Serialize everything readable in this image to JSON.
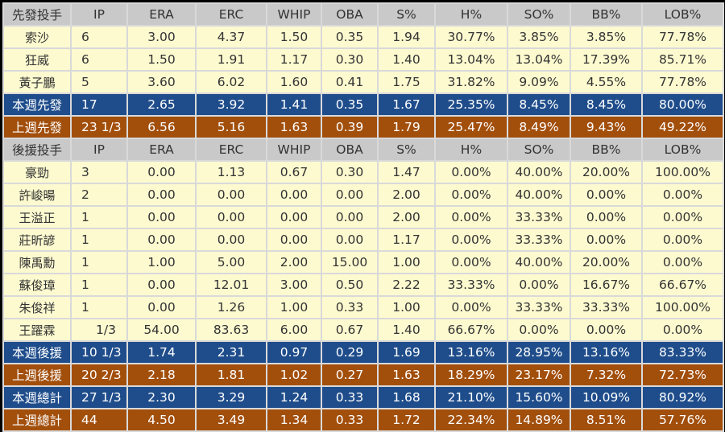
{
  "colors": {
    "header": "#c9c9c9",
    "player": "#fdfad0",
    "this_week": "#1f4d8b",
    "last_week": "#a24f0c"
  },
  "columns": [
    "IP",
    "ERA",
    "ERC",
    "WHIP",
    "OBA",
    "S%",
    "H%",
    "SO%",
    "BB%",
    "LOB%"
  ],
  "rows": [
    {
      "type": "hdr",
      "cells": [
        "先發投手",
        "IP",
        "ERA",
        "ERC",
        "WHIP",
        "OBA",
        "S%",
        "H%",
        "SO%",
        "BB%",
        "LOB%"
      ]
    },
    {
      "type": "player",
      "cells": [
        "索沙",
        "6",
        "3.00",
        "4.37",
        "1.50",
        "0.35",
        "1.94",
        "30.77%",
        "3.85%",
        "3.85%",
        "77.78%"
      ]
    },
    {
      "type": "player",
      "cells": [
        "狂威",
        "6",
        "1.50",
        "1.91",
        "1.17",
        "0.30",
        "1.40",
        "13.04%",
        "13.04%",
        "17.39%",
        "85.71%"
      ]
    },
    {
      "type": "player",
      "cells": [
        "黃子鵬",
        "5",
        "3.60",
        "6.02",
        "1.60",
        "0.41",
        "1.75",
        "31.82%",
        "9.09%",
        "4.55%",
        "77.78%"
      ]
    },
    {
      "type": "cur",
      "cells": [
        "本週先發",
        "17",
        "2.65",
        "3.92",
        "1.41",
        "0.35",
        "1.67",
        "25.35%",
        "8.45%",
        "8.45%",
        "80.00%"
      ]
    },
    {
      "type": "prev",
      "cells": [
        "上週先發",
        "23 1/3",
        "6.56",
        "5.16",
        "1.63",
        "0.39",
        "1.79",
        "25.47%",
        "8.49%",
        "9.43%",
        "49.22%"
      ]
    },
    {
      "type": "hdr",
      "cells": [
        "後援投手",
        "IP",
        "ERA",
        "ERC",
        "WHIP",
        "OBA",
        "S%",
        "H%",
        "SO%",
        "BB%",
        "LOB%"
      ]
    },
    {
      "type": "player",
      "cells": [
        "豪勁",
        "3",
        "0.00",
        "1.13",
        "0.67",
        "0.30",
        "1.47",
        "0.00%",
        "40.00%",
        "20.00%",
        "100.00%"
      ]
    },
    {
      "type": "player",
      "cells": [
        "許峻暘",
        "2",
        "0.00",
        "0.00",
        "0.00",
        "0.00",
        "2.00",
        "0.00%",
        "40.00%",
        "0.00%",
        "0.00%"
      ]
    },
    {
      "type": "player",
      "cells": [
        "王溢正",
        "1",
        "0.00",
        "0.00",
        "0.00",
        "0.00",
        "2.00",
        "0.00%",
        "33.33%",
        "0.00%",
        "0.00%"
      ]
    },
    {
      "type": "player",
      "cells": [
        "莊昕諺",
        "1",
        "0.00",
        "0.00",
        "0.00",
        "0.00",
        "1.17",
        "0.00%",
        "33.33%",
        "0.00%",
        "0.00%"
      ]
    },
    {
      "type": "player",
      "cells": [
        "陳禹勳",
        "1",
        "1.00",
        "5.00",
        "2.00",
        "15.00",
        "1.00",
        "0.00%",
        "40.00%",
        "20.00%",
        "0.00%"
      ]
    },
    {
      "type": "player",
      "cells": [
        "蘇俊璋",
        "1",
        "0.00",
        "12.01",
        "3.00",
        "0.50",
        "2.22",
        "33.33%",
        "0.00%",
        "16.67%",
        "66.67%"
      ]
    },
    {
      "type": "player",
      "cells": [
        "朱俊祥",
        "1",
        "0.00",
        "1.26",
        "1.00",
        "0.33",
        "1.00",
        "0.00%",
        "33.33%",
        "33.33%",
        "100.00%"
      ]
    },
    {
      "type": "player",
      "cells": [
        "王躍霖",
        "1/3",
        "54.00",
        "83.63",
        "6.00",
        "0.67",
        "1.40",
        "66.67%",
        "0.00%",
        "0.00%",
        "0.00%"
      ]
    },
    {
      "type": "cur",
      "cells": [
        "本週後援",
        "10 1/3",
        "1.74",
        "2.31",
        "0.97",
        "0.29",
        "1.69",
        "13.16%",
        "28.95%",
        "13.16%",
        "83.33%"
      ]
    },
    {
      "type": "prev",
      "cells": [
        "上週後援",
        "20 2/3",
        "2.18",
        "1.81",
        "1.02",
        "0.27",
        "1.63",
        "18.29%",
        "23.17%",
        "7.32%",
        "72.73%"
      ]
    },
    {
      "type": "cur",
      "cells": [
        "本週總計",
        "27 1/3",
        "2.30",
        "3.29",
        "1.24",
        "0.33",
        "1.68",
        "21.10%",
        "15.60%",
        "10.09%",
        "80.92%"
      ]
    },
    {
      "type": "prev",
      "cells": [
        "上週總計",
        "44",
        "4.50",
        "3.49",
        "1.34",
        "0.33",
        "1.72",
        "22.34%",
        "14.89%",
        "8.51%",
        "57.76%"
      ]
    }
  ]
}
